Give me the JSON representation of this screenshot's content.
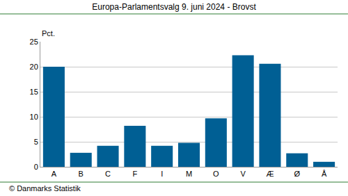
{
  "chart_data": {
    "type": "bar",
    "title": "Europa-Parlamentsvalg 9. juni 2024 - Brovst",
    "ylabel": "Pct.",
    "categories": [
      "A",
      "B",
      "C",
      "F",
      "I",
      "M",
      "O",
      "V",
      "Æ",
      "Ø",
      "Å"
    ],
    "values": [
      20.0,
      2.8,
      4.2,
      8.2,
      4.2,
      4.8,
      9.7,
      22.3,
      20.6,
      2.7,
      1.0
    ],
    "color": "#005f94",
    "ylim": [
      0,
      25
    ],
    "yticks": [
      0,
      5,
      10,
      15,
      20,
      25
    ],
    "grid": true,
    "annotations": [
      "© Danmarks Statistik"
    ]
  }
}
